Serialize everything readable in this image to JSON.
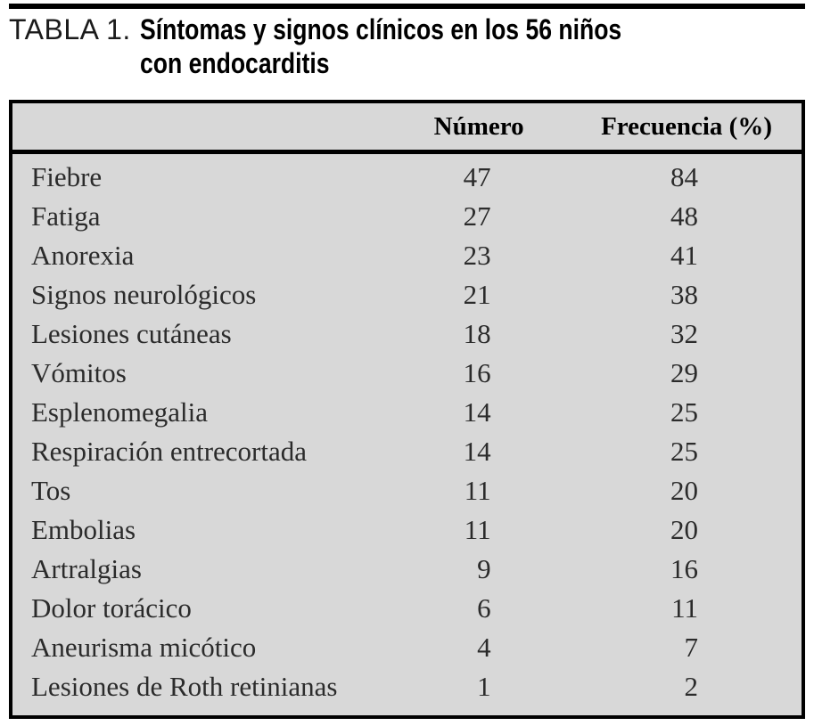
{
  "title": {
    "label": "TABLA 1.",
    "text": "Síntomas y signos clínicos en los 56 niños con endocarditis"
  },
  "table": {
    "columns": [
      "",
      "Número",
      "Frecuencia (%)"
    ],
    "rows": [
      {
        "sintoma": "Fiebre",
        "numero": 47,
        "frecuencia": 84
      },
      {
        "sintoma": "Fatiga",
        "numero": 27,
        "frecuencia": 48
      },
      {
        "sintoma": "Anorexia",
        "numero": 23,
        "frecuencia": 41
      },
      {
        "sintoma": "Signos neurológicos",
        "numero": 21,
        "frecuencia": 38
      },
      {
        "sintoma": "Lesiones cutáneas",
        "numero": 18,
        "frecuencia": 32
      },
      {
        "sintoma": "Vómitos",
        "numero": 16,
        "frecuencia": 29
      },
      {
        "sintoma": "Esplenomegalia",
        "numero": 14,
        "frecuencia": 25
      },
      {
        "sintoma": "Respiración entrecortada",
        "numero": 14,
        "frecuencia": 25
      },
      {
        "sintoma": "Tos",
        "numero": 11,
        "frecuencia": 20
      },
      {
        "sintoma": "Embolias",
        "numero": 11,
        "frecuencia": 20
      },
      {
        "sintoma": "Artralgias",
        "numero": 9,
        "frecuencia": 16
      },
      {
        "sintoma": "Dolor torácico",
        "numero": 6,
        "frecuencia": 11
      },
      {
        "sintoma": "Aneurisma micótico",
        "numero": 4,
        "frecuencia": 7
      },
      {
        "sintoma": "Lesiones de Roth retinianas",
        "numero": 1,
        "frecuencia": 2
      }
    ]
  },
  "colors": {
    "table_background": "#d8d8d8",
    "border": "#000000",
    "body_text": "#2b2b2b",
    "page_background": "#ffffff"
  }
}
